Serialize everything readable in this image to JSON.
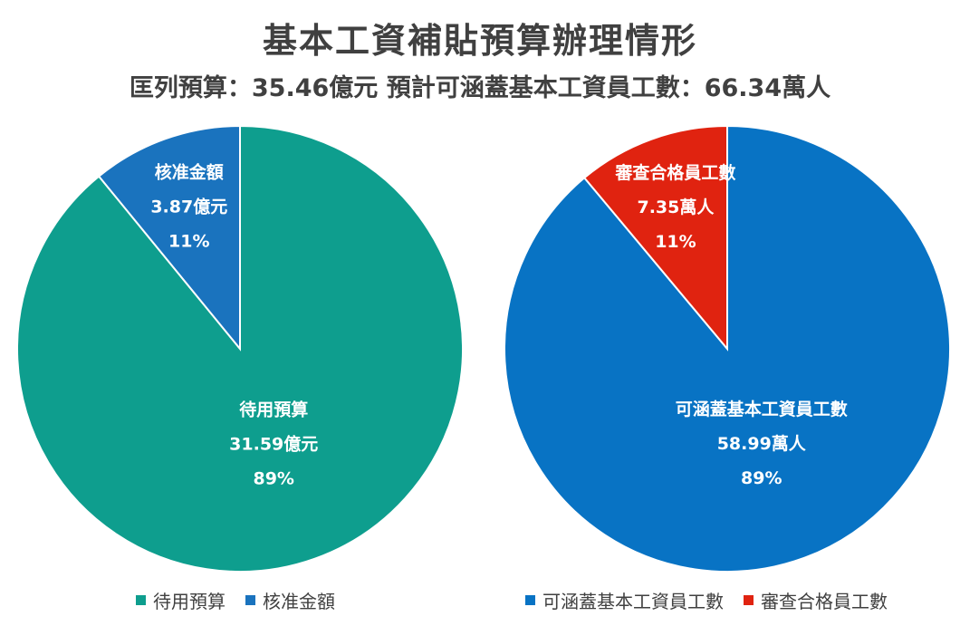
{
  "title": "基本工資補貼預算辦理情形",
  "subtitle": {
    "budget": "匡列預算：35.46億元",
    "workers": "預計可涵蓋基本工資員工數：66.34萬人"
  },
  "chart_data": [
    {
      "type": "pie",
      "slices": [
        {
          "name": "待用預算",
          "value": 31.59,
          "unit": "億元",
          "percent": "89%",
          "color": "#0E9E8E"
        },
        {
          "name": "核准金額",
          "value": 3.87,
          "unit": "億元",
          "percent": "11%",
          "color": "#1A73BE"
        }
      ],
      "legend": "bottom",
      "legend_items": [
        "待用預算",
        "核准金額"
      ]
    },
    {
      "type": "pie",
      "slices": [
        {
          "name": "可涵蓋基本工資員工數",
          "value": 58.99,
          "unit": "萬人",
          "percent": "89%",
          "color": "#0873C4"
        },
        {
          "name": "審查合格員工數",
          "value": 7.35,
          "unit": "萬人",
          "percent": "11%",
          "color": "#E02310"
        }
      ],
      "legend": "bottom",
      "legend_items": [
        "可涵蓋基本工資員工數",
        "審查合格員工數"
      ]
    }
  ]
}
